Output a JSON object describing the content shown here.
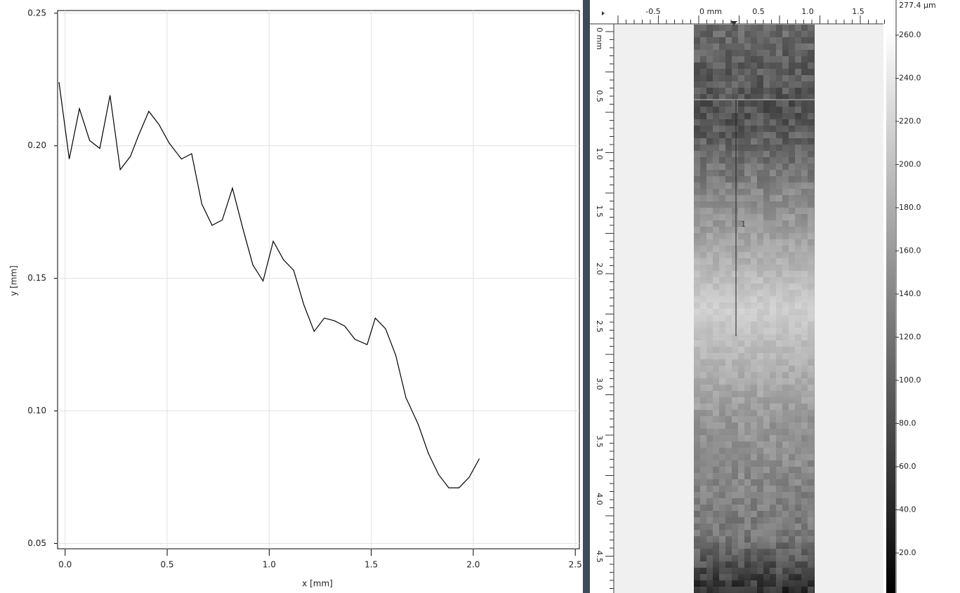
{
  "chart_data": {
    "type": "line",
    "xlabel": "x [mm]",
    "ylabel": "y [mm]",
    "x": [
      -0.03,
      0.02,
      0.07,
      0.12,
      0.17,
      0.22,
      0.27,
      0.32,
      0.36,
      0.41,
      0.46,
      0.51,
      0.57,
      0.62,
      0.67,
      0.72,
      0.77,
      0.82,
      0.87,
      0.92,
      0.97,
      1.02,
      1.07,
      1.12,
      1.17,
      1.22,
      1.27,
      1.32,
      1.37,
      1.42,
      1.48,
      1.52,
      1.57,
      1.62,
      1.67,
      1.73,
      1.78,
      1.83,
      1.88,
      1.93,
      1.98,
      2.03
    ],
    "values": [
      0.224,
      0.195,
      0.214,
      0.202,
      0.199,
      0.219,
      0.191,
      0.196,
      0.204,
      0.213,
      0.208,
      0.201,
      0.195,
      0.197,
      0.178,
      0.17,
      0.172,
      0.184,
      0.169,
      0.155,
      0.149,
      0.164,
      0.157,
      0.153,
      0.14,
      0.13,
      0.135,
      0.134,
      0.132,
      0.127,
      0.125,
      0.135,
      0.131,
      0.121,
      0.105,
      0.095,
      0.084,
      0.076,
      0.071,
      0.071,
      0.075,
      0.082
    ],
    "color": "#000000",
    "xlim": [
      -0.037,
      2.52
    ],
    "xticks": [
      {
        "value": 0,
        "label": "0.0"
      },
      0.5,
      {
        "value": 1,
        "label": "1.0"
      },
      1.5,
      {
        "value": 2,
        "label": "2.0"
      },
      2.5
    ],
    "ylim": [
      0.048,
      0.251
    ],
    "yticks": [
      0.05,
      {
        "value": 0.1,
        "label": "0.10"
      },
      0.15,
      {
        "value": 0.2,
        "label": "0.20"
      },
      0.25
    ],
    "grid": true
  },
  "viewer": {
    "top_ruler": [
      "-0.5",
      "0 mm",
      "0.5",
      "1.0",
      "1.5"
    ],
    "left_ruler": [
      "0 mm",
      "0.5",
      "1.0",
      "1.5",
      "2.0",
      "2.5",
      "3.0",
      "3.5",
      "4.0",
      "4.5"
    ],
    "colorbar": [
      "277.4 µm",
      "260.0",
      "240.0",
      "220.0",
      "200.0",
      "180.0",
      "160.0",
      "140.0",
      "120.0",
      "100.0",
      "80.0",
      "60.0",
      "40.0",
      "20.0"
    ],
    "marker": "1"
  }
}
